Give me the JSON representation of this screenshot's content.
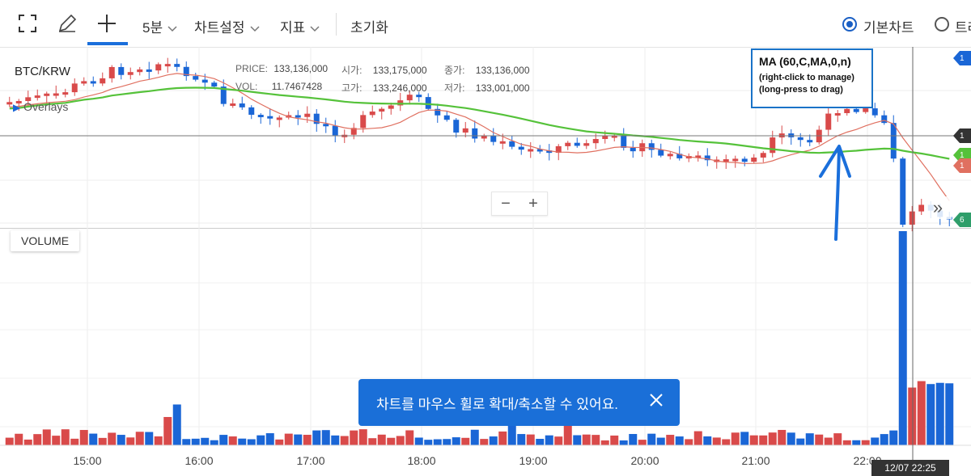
{
  "toolbar": {
    "interval_label": "5분",
    "chart_settings_label": "차트설정",
    "indicators_label": "지표",
    "reset_label": "초기화",
    "basic_chart_label": "기본차트",
    "second_chart_label": "트레"
  },
  "chart_info": {
    "symbol": "BTC/KRW",
    "price_label": "PRICE:",
    "price_value": "133,136,000",
    "open_label": "시가:",
    "open_value": "133,175,000",
    "close_label": "종가:",
    "close_value": "133,136,000",
    "vol_label": "VOL:",
    "vol_value": "11.7467428",
    "high_label": "고가:",
    "high_value": "133,246,000",
    "low_label": "저가:",
    "low_value": "133,001,000",
    "overlays_label": "Overlays"
  },
  "ma_popup": {
    "title": "MA (60,C,MA,0,n)",
    "line1": "(right-click to manage)",
    "line2": "(long-press to drag)"
  },
  "volume_label": "VOLUME",
  "toast": {
    "message": "차트를 마우스 휠로 확대/축소할 수 있어요."
  },
  "crosshair_time": "12/07 22:25",
  "price_tags": [
    "1",
    "1",
    "1",
    "6"
  ],
  "colors": {
    "up": "#d94a4a",
    "down": "#1a66d6",
    "ma_short": "#e07060",
    "ma_long": "#55c23a",
    "accent": "#1a6fdb"
  },
  "chart_data": {
    "type": "candlestick",
    "x_axis_labels": [
      "15:00",
      "16:00",
      "17:00",
      "18:00",
      "19:00",
      "20:00",
      "21:00",
      "22:00"
    ],
    "candle_interval": "5분",
    "series": [
      {
        "name": "MA (60,C,MA,0,n)",
        "type": "line"
      }
    ],
    "last_close": 133136000,
    "last_open": 133175000,
    "last_high": 133246000,
    "last_low": 133001000,
    "last_volume": 11.7467428,
    "grid": true
  }
}
